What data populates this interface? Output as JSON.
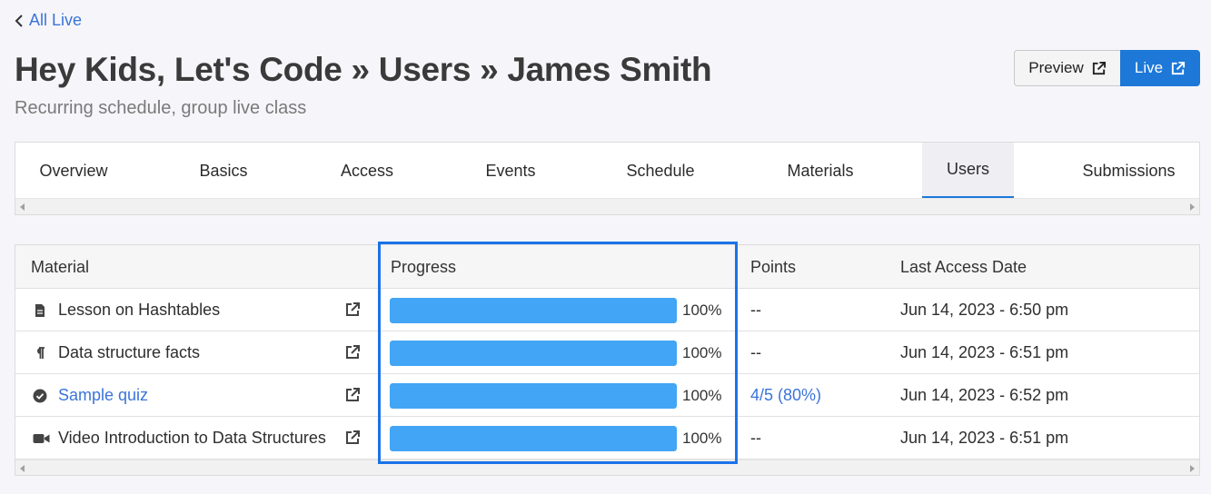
{
  "nav": {
    "back_label": "All Live"
  },
  "header": {
    "title": "Hey Kids, Let's Code » Users » James Smith",
    "subtitle": "Recurring schedule, group live class",
    "preview_label": "Preview",
    "live_label": "Live"
  },
  "tabs": [
    {
      "label": "Overview",
      "active": false
    },
    {
      "label": "Basics",
      "active": false
    },
    {
      "label": "Access",
      "active": false
    },
    {
      "label": "Events",
      "active": false
    },
    {
      "label": "Schedule",
      "active": false
    },
    {
      "label": "Materials",
      "active": false
    },
    {
      "label": "Users",
      "active": true
    },
    {
      "label": "Submissions",
      "active": false
    }
  ],
  "table": {
    "columns": [
      "Material",
      "Progress",
      "Points",
      "Last Access Date"
    ],
    "rows": [
      {
        "icon": "document-icon",
        "material": "Lesson on Hashtables",
        "progress": 1.0,
        "progress_label": "100%",
        "points": "--",
        "last_access": "Jun 14, 2023 - 6:50 pm"
      },
      {
        "icon": "paragraph-icon",
        "material": "Data structure facts",
        "progress": 1.0,
        "progress_label": "100%",
        "points": "--",
        "last_access": "Jun 14, 2023 - 6:51 pm"
      },
      {
        "icon": "check-circle-icon",
        "material": "Sample quiz",
        "progress": 1.0,
        "progress_label": "100%",
        "points": "4/5 (80%)",
        "last_access": "Jun 14, 2023 - 6:52 pm"
      },
      {
        "icon": "video-camera-icon",
        "material": "Video Introduction to Data Structures",
        "progress": 1.0,
        "progress_label": "100%",
        "points": "--",
        "last_access": "Jun 14, 2023 - 6:51 pm"
      }
    ]
  },
  "colors": {
    "accent": "#1d78d8",
    "link": "#3b74d9",
    "progress_fill": "#42a5f5",
    "highlight": "#1a73e8"
  }
}
